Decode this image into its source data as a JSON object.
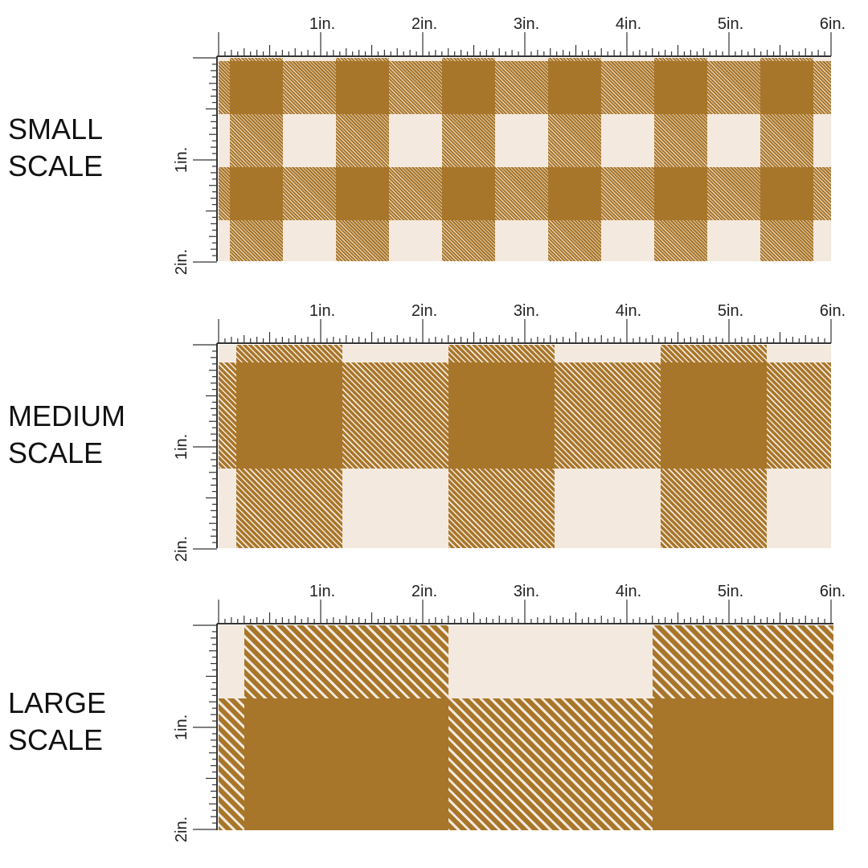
{
  "colors": {
    "cream": "#f4e9de",
    "mustard": "#a8762a",
    "mid": "#c29a63",
    "ruler_ink": "#333333",
    "label_text": "#111111"
  },
  "ruler": {
    "horizontal_labels": [
      "1in.",
      "2in.",
      "3in.",
      "4in.",
      "5in.",
      "6in."
    ],
    "vertical_labels": [
      "1in.",
      "2in."
    ]
  },
  "pattern": {
    "name": "buffalo check",
    "shade_order": [
      "cream",
      "mid",
      "mustard"
    ]
  },
  "sections": [
    {
      "id": "small",
      "label_line1": "SMALL",
      "label_line2": "SCALE",
      "repeat_in": 1.04,
      "offset_x_in": 0.41,
      "offset_y_in": 0.49,
      "stripe_texture": "fine"
    },
    {
      "id": "medium",
      "label_line1": "MEDIUM",
      "label_line2": "SCALE",
      "repeat_in": 2.08,
      "offset_x_in": 0.87,
      "offset_y_in": 0.87,
      "stripe_texture": "medium"
    },
    {
      "id": "large",
      "label_line1": "LARGE",
      "label_line2": "SCALE",
      "repeat_in": 4.0,
      "offset_x_in": 1.75,
      "offset_y_in": 1.28,
      "stripe_texture": "bold"
    }
  ]
}
